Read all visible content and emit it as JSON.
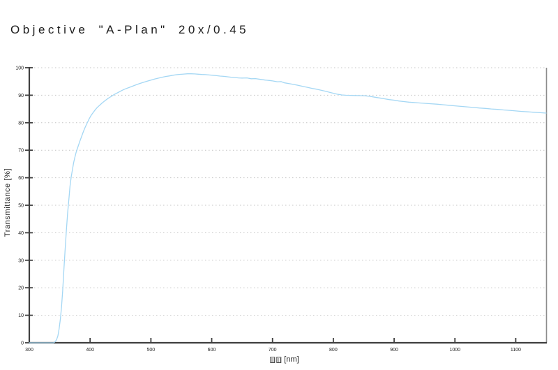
{
  "title": "Objective \"A-Plan\" 20x/0.45",
  "colors": {
    "curve": "#a4d7f4",
    "axis": "#3f3f3f",
    "grid": "#c4c4c4",
    "frame_right": "#8c8c8c",
    "text": "#1a1a1a",
    "background": "#ffffff"
  },
  "chart_data": {
    "type": "line",
    "title": "Objective \"A-Plan\" 20x/0.45",
    "xlabel": "[nm]",
    "xlabel_prefix": "two missing-glyph boxes (tofu) before unit",
    "ylabel": "Transmittance [%]",
    "xlim": [
      300,
      1150
    ],
    "ylim": [
      0,
      100
    ],
    "x_ticks": [
      300,
      400,
      500,
      600,
      700,
      800,
      900,
      1000,
      1100
    ],
    "y_ticks": [
      0,
      10,
      20,
      30,
      40,
      50,
      60,
      70,
      80,
      90,
      100
    ],
    "grid": "horizontal-dotted",
    "legend": "none",
    "series": [
      {
        "name": "transmittance",
        "color": "#a4d7f4",
        "x": [
          300,
          310,
          320,
          330,
          340,
          343,
          345,
          347,
          349,
          351,
          353,
          355,
          357,
          359,
          361,
          363,
          365,
          367,
          369,
          371,
          373,
          375,
          377,
          380,
          383,
          386,
          389,
          392,
          395,
          398,
          401,
          404,
          408,
          412,
          416,
          420,
          425,
          430,
          435,
          440,
          446,
          452,
          458,
          464,
          470,
          476,
          482,
          488,
          494,
          500,
          506,
          512,
          518,
          524,
          530,
          536,
          542,
          548,
          554,
          560,
          566,
          572,
          578,
          584,
          590,
          596,
          602,
          608,
          614,
          620,
          626,
          632,
          638,
          644,
          650,
          658,
          665,
          672,
          680,
          688,
          695,
          700,
          708,
          714,
          720,
          728,
          735,
          742,
          750,
          758,
          765,
          772,
          780,
          788,
          795,
          802,
          808,
          814,
          820,
          828,
          836,
          845,
          852,
          860,
          868,
          876,
          884,
          892,
          900,
          908,
          916,
          924,
          932,
          940,
          950,
          960,
          970,
          980,
          990,
          1000,
          1010,
          1020,
          1030,
          1040,
          1050,
          1060,
          1070,
          1080,
          1090,
          1100,
          1110,
          1120,
          1130,
          1140,
          1150
        ],
        "values": [
          0,
          0,
          0,
          0,
          0,
          0.5,
          1.2,
          2.5,
          5,
          8.5,
          13,
          19,
          27,
          34,
          41,
          47,
          52,
          57,
          60.5,
          63,
          65.5,
          67.5,
          69.2,
          71.2,
          73.2,
          75,
          76.8,
          78.4,
          79.8,
          81.2,
          82.4,
          83.4,
          84.6,
          85.6,
          86.4,
          87.2,
          88.1,
          88.9,
          89.6,
          90.3,
          91,
          91.7,
          92.3,
          92.8,
          93.3,
          93.8,
          94.3,
          94.7,
          95.1,
          95.5,
          95.9,
          96.2,
          96.5,
          96.8,
          97,
          97.25,
          97.45,
          97.6,
          97.7,
          97.8,
          97.8,
          97.75,
          97.65,
          97.55,
          97.5,
          97.35,
          97.25,
          97.1,
          96.95,
          96.85,
          96.7,
          96.55,
          96.45,
          96.3,
          96.25,
          96.3,
          96,
          96.05,
          95.75,
          95.5,
          95.35,
          95.2,
          94.9,
          94.95,
          94.5,
          94.2,
          93.9,
          93.6,
          93.2,
          92.85,
          92.5,
          92.2,
          91.8,
          91.4,
          91,
          90.6,
          90.3,
          90.1,
          90,
          89.95,
          89.9,
          89.85,
          89.8,
          89.6,
          89.3,
          89,
          88.7,
          88.4,
          88.2,
          87.9,
          87.7,
          87.5,
          87.35,
          87.2,
          87.05,
          86.9,
          86.75,
          86.55,
          86.35,
          86.15,
          85.95,
          85.75,
          85.55,
          85.35,
          85.2,
          85,
          84.85,
          84.65,
          84.5,
          84.3,
          84.1,
          83.95,
          83.8,
          83.65,
          83.5
        ]
      }
    ]
  }
}
